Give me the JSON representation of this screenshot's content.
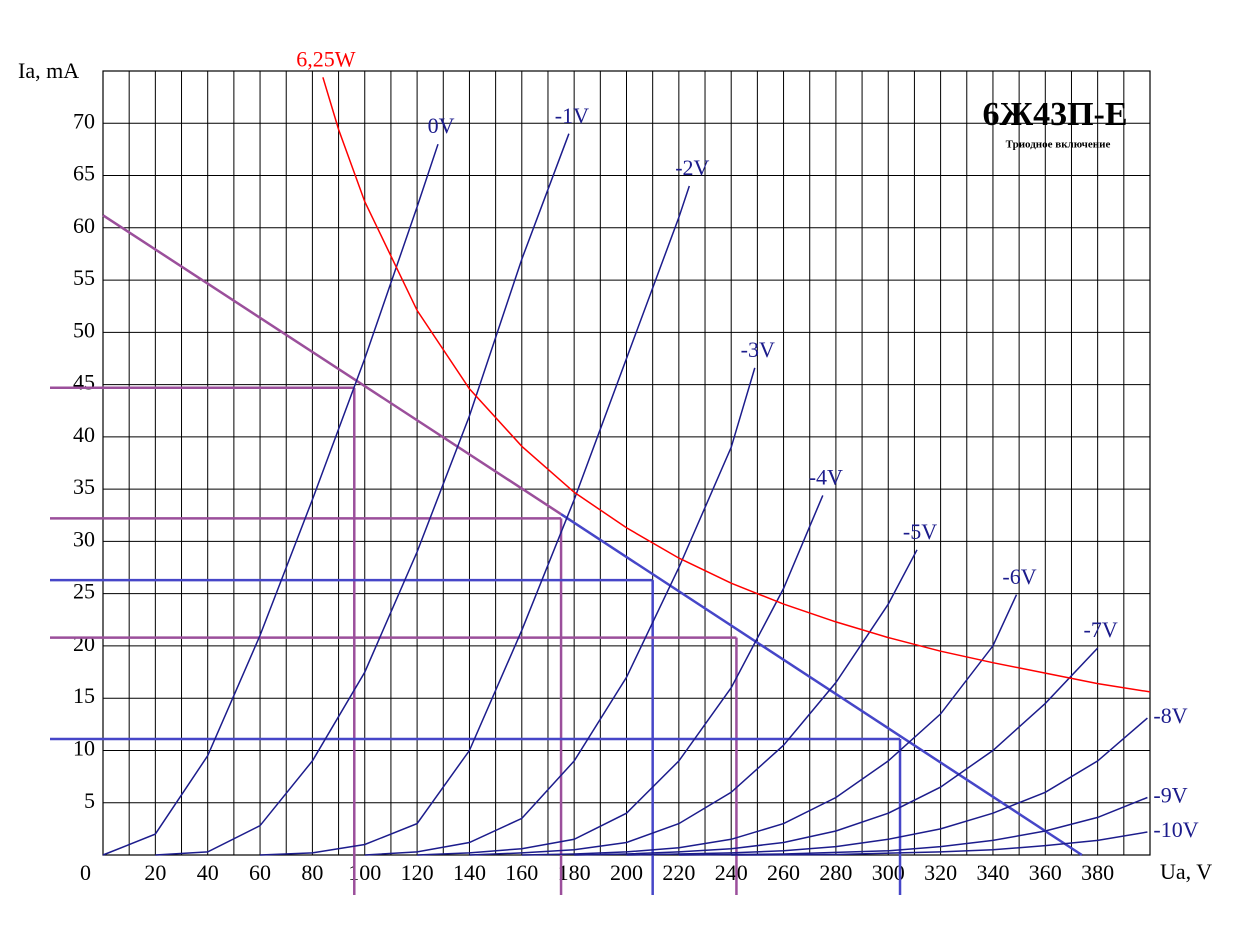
{
  "chart_data": {
    "type": "line",
    "title": "6Ж43П-Е",
    "subtitle": "Триодное включение",
    "y_label": "Ia, mA",
    "x_label": "Ua, V",
    "xlim": [
      0,
      400
    ],
    "ylim": [
      0,
      75
    ],
    "xticks": [
      0,
      20,
      40,
      60,
      80,
      100,
      120,
      140,
      160,
      180,
      200,
      220,
      240,
      260,
      280,
      300,
      320,
      340,
      360,
      380
    ],
    "x_minor_ticks": [
      10,
      30,
      50,
      70,
      90,
      110,
      130,
      150,
      170,
      190,
      210,
      230,
      250,
      270,
      290,
      310,
      330,
      350,
      370,
      390
    ],
    "yticks": [
      5,
      10,
      15,
      20,
      25,
      30,
      35,
      40,
      45,
      50,
      55,
      60,
      65,
      70
    ],
    "grid": true,
    "series": [
      {
        "name": "0V",
        "color": "#1c1c8c",
        "x": [
          0,
          20,
          40,
          60,
          80,
          100,
          120,
          128
        ],
        "values": [
          0,
          2,
          9.5,
          21,
          34,
          47.5,
          62,
          68
        ]
      },
      {
        "name": "-1V",
        "color": "#1c1c8c",
        "x": [
          20,
          40,
          60,
          80,
          100,
          120,
          140,
          160,
          178
        ],
        "values": [
          0,
          0.3,
          2.8,
          9,
          17.5,
          29,
          42,
          57,
          69
        ]
      },
      {
        "name": "-2V",
        "color": "#1c1c8c",
        "x": [
          60,
          80,
          100,
          120,
          140,
          160,
          180,
          200,
          220,
          224
        ],
        "values": [
          0,
          0.2,
          1,
          3,
          10,
          21.5,
          34,
          47.5,
          61,
          64
        ]
      },
      {
        "name": "-3V",
        "color": "#1c1c8c",
        "x": [
          100,
          120,
          140,
          160,
          180,
          200,
          220,
          240,
          249
        ],
        "values": [
          0,
          0.3,
          1.2,
          3.5,
          9,
          17,
          27.5,
          39,
          46.6
        ]
      },
      {
        "name": "-4V",
        "color": "#1c1c8c",
        "x": [
          120,
          140,
          160,
          180,
          200,
          220,
          240,
          260,
          275
        ],
        "values": [
          0,
          0.2,
          0.6,
          1.5,
          4,
          9,
          16,
          25.5,
          34.4
        ]
      },
      {
        "name": "-5V",
        "color": "#1c1c8c",
        "x": [
          140,
          160,
          180,
          200,
          220,
          240,
          260,
          280,
          300,
          311
        ],
        "values": [
          0,
          0.2,
          0.5,
          1.2,
          3,
          6,
          10.5,
          16.5,
          24,
          29.2
        ]
      },
      {
        "name": "-6V",
        "color": "#1c1c8c",
        "x": [
          160,
          180,
          200,
          220,
          240,
          260,
          280,
          300,
          320,
          340,
          349
        ],
        "values": [
          0,
          0.1,
          0.3,
          0.7,
          1.5,
          3,
          5.5,
          9,
          13.5,
          20,
          24.9
        ]
      },
      {
        "name": "-7V",
        "color": "#1c1c8c",
        "x": [
          180,
          200,
          220,
          240,
          260,
          280,
          300,
          320,
          340,
          360,
          380
        ],
        "values": [
          0,
          0.1,
          0.3,
          0.6,
          1.2,
          2.3,
          4,
          6.5,
          10,
          14.5,
          19.8
        ]
      },
      {
        "name": "-8V",
        "color": "#1c1c8c",
        "x": [
          200,
          220,
          240,
          260,
          280,
          300,
          320,
          340,
          360,
          380,
          399
        ],
        "values": [
          0,
          0.1,
          0.2,
          0.4,
          0.8,
          1.5,
          2.5,
          4,
          6,
          9,
          13.1
        ]
      },
      {
        "name": "-9V",
        "color": "#1c1c8c",
        "x": [
          220,
          260,
          300,
          320,
          340,
          360,
          380,
          399
        ],
        "values": [
          0,
          0.1,
          0.4,
          0.8,
          1.4,
          2.3,
          3.6,
          5.5
        ]
      },
      {
        "name": "-10V",
        "color": "#1c1c8c",
        "x": [
          240,
          280,
          320,
          340,
          360,
          380,
          399
        ],
        "values": [
          0,
          0.05,
          0.3,
          0.5,
          0.9,
          1.4,
          2.2
        ]
      },
      {
        "name": "6,25W",
        "color": "#ff0000",
        "x": [
          84,
          90,
          100,
          120,
          140,
          160,
          180,
          200,
          220,
          240,
          260,
          280,
          300,
          320,
          340,
          360,
          380,
          400
        ],
        "values": [
          74.4,
          69.4,
          62.5,
          52.1,
          44.6,
          39.1,
          34.7,
          31.3,
          28.4,
          26.0,
          24.0,
          22.3,
          20.8,
          19.5,
          18.4,
          17.4,
          16.4,
          15.6
        ]
      }
    ],
    "load_line": [
      {
        "color": "#9b4f9b",
        "x": [
          0,
          175
        ],
        "values": [
          61.2,
          32.6
        ]
      },
      {
        "color": "#4646c8",
        "x": [
          175,
          374
        ],
        "values": [
          32.6,
          0
        ]
      }
    ],
    "operating_points": [
      {
        "x": 96,
        "y": 44.7,
        "color": "#9b4f9b"
      },
      {
        "x": 175,
        "y": 32.2,
        "color": "#9b4f9b"
      },
      {
        "x": 210,
        "y": 26.3,
        "color": "#4646c8"
      },
      {
        "x": 242,
        "y": 20.8,
        "color": "#9b4f9b"
      },
      {
        "x": 304.5,
        "y": 11.1,
        "color": "#4646c8"
      }
    ]
  }
}
